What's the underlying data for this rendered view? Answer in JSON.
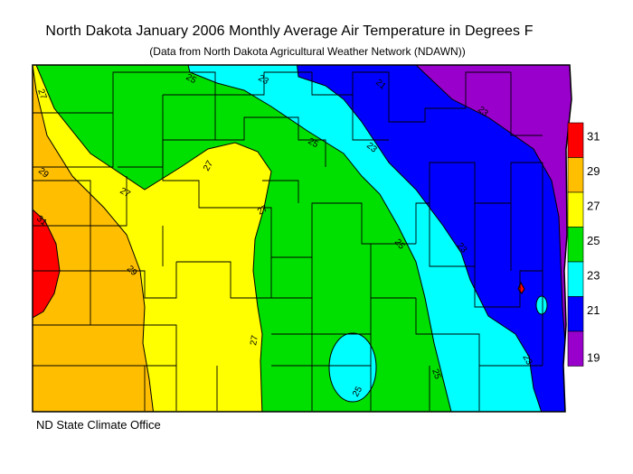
{
  "header": {
    "title": "North Dakota January 2006 Monthly Average Air Temperature in Degrees F",
    "subtitle": "(Data from North Dakota Agricultural Weather Network (NDAWN))"
  },
  "footer": {
    "credit": "ND State Climate Office"
  },
  "legend": {
    "bands": [
      {
        "label": "31",
        "color": "#ff0000"
      },
      {
        "label": "29",
        "color": "#ffbf00"
      },
      {
        "label": "27",
        "color": "#ffff00"
      },
      {
        "label": "25",
        "color": "#00e000"
      },
      {
        "label": "23",
        "color": "#00ffff"
      },
      {
        "label": "21",
        "color": "#0000ff"
      },
      {
        "label": "19",
        "color": "#9900cc"
      }
    ]
  },
  "contour_labels": [
    "27",
    "25",
    "23",
    "21",
    "29",
    "31",
    "29",
    "27",
    "27",
    "27",
    "25",
    "23",
    "25",
    "23",
    "25",
    "27",
    "25",
    "23",
    "23"
  ],
  "colors": {
    "purple": "#9900cc",
    "blue": "#0000ff",
    "cyan": "#00ffff",
    "green": "#00e000",
    "yellow": "#ffff00",
    "orange": "#ffbf00",
    "red": "#ff0000"
  }
}
